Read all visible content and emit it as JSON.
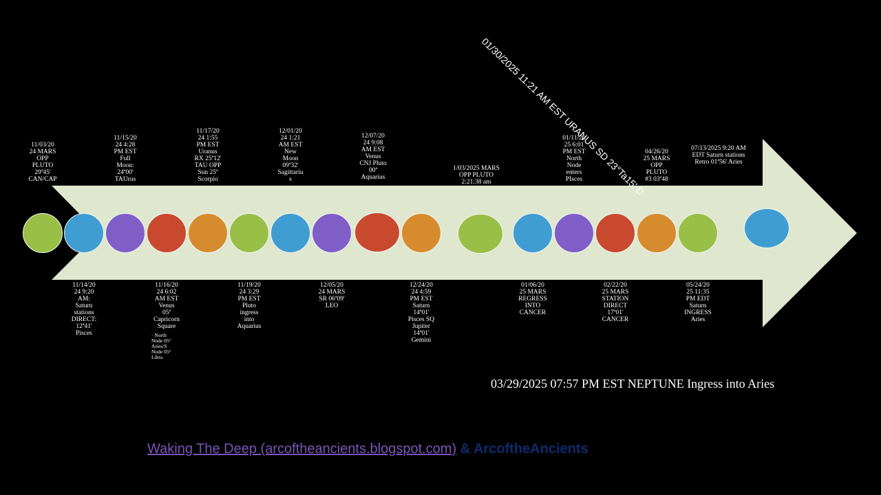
{
  "colors": {
    "arrow_fill": "#dfe8ce",
    "green": "#99bf47",
    "blue": "#3f9dd2",
    "purple": "#7f5fc7",
    "red": "#c9492e",
    "orange": "#d68c2e"
  },
  "events_above": [
    {
      "text": "11/03/20\n24 MARS\nOPP\nPLUTO\n29ª45'\nCAN/CAP"
    },
    {
      "text": "11/15/20\n24 4:28\nPM EST\nFull\nMoon:\n24ª00'\nTAUrus"
    },
    {
      "text": "11/17/20\n24 1:55\nPM EST\nUranus\nRX 25ª12'\nTAU OPP\nSun 25ª\nScorpio"
    },
    {
      "text": "12/01/20\n24 1:21\nAM EST\nNew\nMoon\n09ª32'\nSagittariu\ns"
    },
    {
      "text": "12/07/20\n24 9:08\nAM EST\nVenus\nCNJ Pluto\n00ª\nAquarius"
    },
    {
      "text": "1/03/2025 MARS\nOPP PLUTO\n2:21:38 am"
    },
    {
      "text": "01/11/20\n25 6:01\nPM EST\nNorth\nNode\nenters\nPIsces"
    },
    {
      "text": "04/26/20\n25 MARS\nOPP\nPLUTO\n#3 03ª48"
    },
    {
      "text": "07/13/2025 9:20 AM\nEDT Saturn stations\nRetro 01ª56' Aries"
    }
  ],
  "events_below": [
    {
      "text": "11/14/20\n24 9:20\nAM:\nSaturn\nstations\nDIRECT:\n12ª41'\nPisces"
    },
    {
      "text": "11/16/20\n24 6:02\nAM EST\nVenus\n05ª\nCapricorn\nSquare"
    },
    {
      "text": "11/19/20\n24 3:29\nPM EST\nPluto\ningress\ninto\nAquarius"
    },
    {
      "text": "12/05/20\n24 MARS\nSR 06ª09'\nLEO"
    },
    {
      "text": "12/24/20\n24 4:59\nPM EST\nSaturn\n14ª01'\nPisces SQ\nJupiter\n14ª01'\nGemini"
    },
    {
      "text": "01/06/20\n25 MARS\nREGRESS\nINTO\nCANCER"
    },
    {
      "text": "02/22/20\n25 MARS\nSTATION\nDIRECT\n17ª01'\nCANCER"
    },
    {
      "text": "05/24/20\n25 11:35\nPM EDT\nSaturn\nINGRESS\nAries"
    }
  ],
  "sub_note": "· North\nNode 05ª\nAries/S\nNode 05ª\nLibra",
  "uranus_note": "01/30/2025 11:21 AM EST URANUS SD 23°Ta15' D",
  "neptune_note": "03/29/2025 07:57 PM EST NEPTUNE Ingress into Aries",
  "footer": {
    "link_text": "Waking The Deep (arcoftheancients.blogspot.com)",
    "rest_text": " & ArcoftheAncients"
  },
  "circles": [
    {
      "color": "green"
    },
    {
      "color": "blue"
    },
    {
      "color": "purple"
    },
    {
      "color": "red"
    },
    {
      "color": "orange"
    },
    {
      "color": "green"
    },
    {
      "color": "blue"
    },
    {
      "color": "purple"
    },
    {
      "color": "red"
    },
    {
      "color": "orange"
    },
    {
      "color": "green"
    },
    {
      "color": "blue"
    },
    {
      "color": "purple"
    },
    {
      "color": "red"
    },
    {
      "color": "orange"
    },
    {
      "color": "green"
    },
    {
      "color": "blue"
    }
  ]
}
